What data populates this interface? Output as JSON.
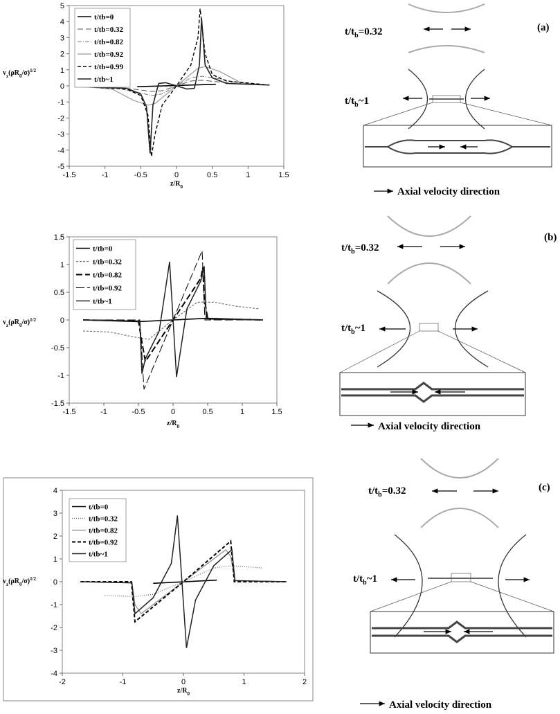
{
  "chart_data": [
    {
      "type": "line",
      "xlabel": [
        "z/R",
        "0"
      ],
      "ylabel": [
        "v",
        "z",
        "(ρR",
        "0",
        "/σ)",
        "1/2"
      ],
      "xlim": [
        -1.5,
        1.5
      ],
      "xticks": [
        -1.5,
        -1,
        -0.5,
        0,
        0.5,
        1,
        1.5
      ],
      "ylim": [
        -5,
        5
      ],
      "yticks": [
        -5,
        -4,
        -3,
        -2,
        -1,
        0,
        1,
        2,
        3,
        4,
        5
      ],
      "series": [
        {
          "name": "t/tb=0",
          "color": "#000000",
          "width": 1.6,
          "dash": "none",
          "x": [
            -0.55,
            0.55
          ],
          "values": [
            -0.05,
            0.1
          ]
        },
        {
          "name": "t/tb=0.32",
          "color": "#555555",
          "width": 1,
          "dash": "8 4",
          "x": [
            -1.3,
            -0.9,
            -0.6,
            -0.35,
            -0.2,
            0,
            0.2,
            0.35,
            0.6,
            0.9,
            1.3
          ],
          "values": [
            -0.05,
            -0.1,
            -0.2,
            -0.35,
            -0.3,
            0,
            0.3,
            0.35,
            0.25,
            0.12,
            0.05
          ]
        },
        {
          "name": "t/tb=0.82",
          "color": "#777777",
          "width": 1,
          "dash": "6 2 1 2",
          "x": [
            -1.3,
            -0.9,
            -0.6,
            -0.35,
            -0.2,
            0,
            0.2,
            0.35,
            0.6,
            0.9,
            1.3
          ],
          "values": [
            -0.03,
            -0.1,
            -0.35,
            -0.6,
            -0.5,
            0,
            0.5,
            0.6,
            0.45,
            0.15,
            0.05
          ]
        },
        {
          "name": "t/tb=0.92",
          "color": "#999999",
          "width": 1.2,
          "dash": "none",
          "x": [
            -1.3,
            -0.9,
            -0.6,
            -0.4,
            -0.3,
            0,
            0.3,
            0.4,
            0.6,
            0.9,
            1.3
          ],
          "values": [
            -0.05,
            -0.2,
            -0.9,
            -1.2,
            -1.1,
            0,
            1.1,
            1.2,
            0.9,
            0.2,
            0.05
          ]
        },
        {
          "name": "t/tb=0.99",
          "color": "#000000",
          "width": 1.4,
          "dash": "5 3",
          "x": [
            -1.3,
            -0.7,
            -0.5,
            -0.4,
            -0.35,
            -0.3,
            -0.2,
            0,
            0.2,
            0.3,
            0.33,
            0.4,
            0.5,
            0.7,
            1.3
          ],
          "values": [
            -0.05,
            -0.2,
            -0.6,
            -1.8,
            -4.4,
            -3,
            -1.2,
            0,
            1.3,
            3,
            4.8,
            2,
            0.7,
            0.3,
            0.05
          ]
        },
        {
          "name": "t/tb~1",
          "color": "#222222",
          "width": 1.6,
          "dash": "none",
          "x": [
            -1.3,
            -0.7,
            -0.5,
            -0.42,
            -0.37,
            -0.33,
            -0.25,
            -0.15,
            0,
            0.15,
            0.25,
            0.32,
            0.35,
            0.4,
            0.5,
            0.7,
            1.3
          ],
          "values": [
            -0.05,
            -0.15,
            -0.5,
            -1.3,
            -4.2,
            -1.2,
            0.15,
            0.2,
            0,
            -0.2,
            -0.15,
            1.3,
            4.2,
            1.3,
            0.5,
            0.15,
            0.05
          ]
        }
      ]
    },
    {
      "type": "line",
      "xlabel": [
        "z/R",
        "0"
      ],
      "ylabel": [
        "v",
        "z",
        "(ρR",
        "0",
        "/σ)",
        "1/2"
      ],
      "xlim": [
        -1.5,
        1.5
      ],
      "xticks": [
        -1.5,
        -1,
        -0.5,
        0,
        0.5,
        1,
        1.5
      ],
      "ylim": [
        -1.5,
        1.5
      ],
      "yticks": [
        -1.5,
        -1,
        -0.5,
        0,
        0.5,
        1,
        1.5
      ],
      "series": [
        {
          "name": "t/tb=0",
          "color": "#000000",
          "width": 1.6,
          "dash": "none",
          "x": [
            -1.3,
            -0.5,
            0,
            0.5,
            1.3
          ],
          "values": [
            0,
            -0.03,
            0,
            0.03,
            0
          ]
        },
        {
          "name": "t/tb=0.32",
          "color": "#777777",
          "width": 1.2,
          "dash": "3 2",
          "x": [
            -1.3,
            -0.9,
            -0.6,
            -0.35,
            0,
            0.35,
            0.6,
            0.9,
            1.25
          ],
          "values": [
            -0.2,
            -0.22,
            -0.3,
            -0.35,
            0,
            0.32,
            0.32,
            0.25,
            0.2
          ]
        },
        {
          "name": "t/tb=0.82",
          "color": "#000000",
          "width": 2,
          "dash": "9 4",
          "x": [
            -1.3,
            -0.5,
            -0.45,
            -0.4,
            0,
            0.4,
            0.43,
            0.45,
            0.5,
            1.3
          ],
          "values": [
            0,
            -0.02,
            -0.4,
            -0.75,
            0,
            0.75,
            0.95,
            0.4,
            0.02,
            0
          ]
        },
        {
          "name": "t/tb=0.92",
          "color": "#000000",
          "width": 1,
          "dash": "12 4",
          "x": [
            -1.3,
            -0.48,
            -0.42,
            0,
            0.42,
            0.46,
            1.3
          ],
          "values": [
            0,
            0,
            -1.25,
            0,
            1.25,
            0,
            0
          ]
        },
        {
          "name": "t/tb~1",
          "color": "#222222",
          "width": 1.5,
          "dash": "none",
          "x": [
            -1.3,
            -0.48,
            -0.45,
            -0.4,
            -0.2,
            -0.05,
            0.05,
            0.2,
            0.4,
            0.45,
            0.48,
            1.3
          ],
          "values": [
            0,
            -0.02,
            -0.97,
            -0.7,
            -0.2,
            1.05,
            -1.03,
            0.2,
            0.7,
            0.97,
            0.02,
            0
          ]
        }
      ]
    },
    {
      "type": "line",
      "xlabel": [
        "z/R",
        "0"
      ],
      "ylabel": [
        "v",
        "z",
        "(ρR",
        "0",
        "/σ)",
        "1/2"
      ],
      "xlim": [
        -2,
        2
      ],
      "xticks": [
        -2,
        -1,
        0,
        1,
        2
      ],
      "ylim": [
        -4,
        4
      ],
      "yticks": [
        -4,
        -3,
        -2,
        -1,
        0,
        1,
        2,
        3,
        4
      ],
      "series": [
        {
          "name": "t/tb=0",
          "color": "#000000",
          "width": 1.6,
          "dash": "none",
          "x": [
            -0.5,
            0.55
          ],
          "values": [
            -0.07,
            0.07
          ]
        },
        {
          "name": "t/tb=0.32",
          "color": "#666666",
          "width": 1.2,
          "dash": "1 2",
          "x": [
            -1.3,
            -0.8,
            -0.5,
            0,
            0.5,
            0.8,
            1.3
          ],
          "values": [
            -0.6,
            -0.65,
            -0.55,
            0,
            0.6,
            0.7,
            0.6
          ]
        },
        {
          "name": "t/tb=0.82",
          "color": "#888888",
          "width": 1.2,
          "dash": "none",
          "x": [
            -1.7,
            -0.85,
            -0.8,
            -0.7,
            0,
            0.7,
            0.78,
            0.85,
            1.7
          ],
          "values": [
            0,
            -0.05,
            -1,
            -1.4,
            0,
            1.4,
            1.1,
            0.05,
            0
          ]
        },
        {
          "name": "t/tb=0.92",
          "color": "#000000",
          "width": 2,
          "dash": "5 3",
          "x": [
            -1.7,
            -0.86,
            -0.8,
            0,
            0.78,
            0.84,
            1.7
          ],
          "values": [
            0,
            0,
            -1.75,
            0,
            1.78,
            0,
            0
          ]
        },
        {
          "name": "t/tb~1",
          "color": "#222222",
          "width": 1.5,
          "dash": "none",
          "x": [
            -1.7,
            -0.85,
            -0.8,
            -0.5,
            -0.2,
            -0.1,
            0.05,
            0.2,
            0.5,
            0.8,
            0.85,
            1.7
          ],
          "values": [
            0,
            -0.05,
            -1.4,
            -0.7,
            0.8,
            2.9,
            -2.9,
            -0.8,
            0.7,
            1.4,
            0.05,
            0
          ]
        }
      ]
    }
  ],
  "diagrams": [
    {
      "label": "(a)",
      "upper": [
        "t/t",
        "b",
        "=0.32"
      ],
      "lower": [
        "t/t",
        "b",
        "~1"
      ],
      "caption": "Axial velocity direction"
    },
    {
      "label": "(b)",
      "upper": [
        "t/t",
        "b",
        "=0.32"
      ],
      "lower": [
        "t/t",
        "b",
        "~1"
      ],
      "caption": "Axial velocity direction"
    },
    {
      "label": "(c)",
      "upper": [
        "t/t",
        "b",
        "=0.32"
      ],
      "lower": [
        "t/t",
        "b",
        "~1"
      ],
      "caption": "Axial velocity direction"
    }
  ]
}
